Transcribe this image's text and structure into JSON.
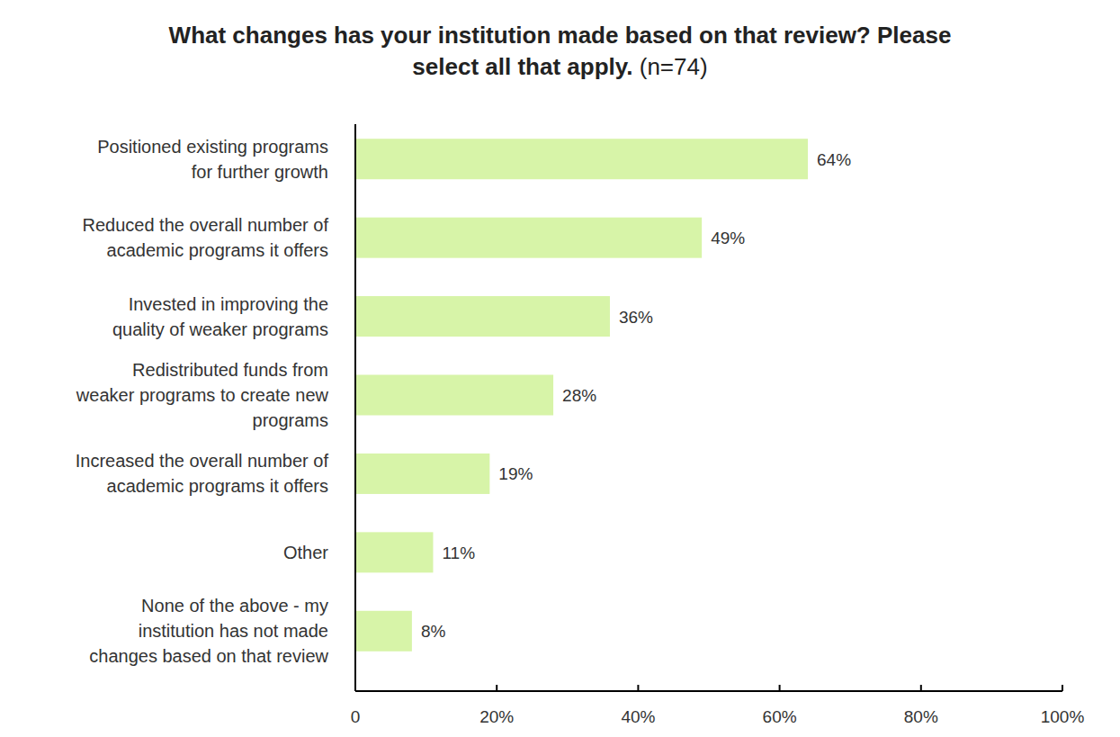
{
  "chart_data": {
    "type": "bar",
    "orientation": "horizontal",
    "title": "What changes has your institution made based on that review? Please select all that apply.",
    "subtitle": "(n=74)",
    "categories": [
      "Positioned existing programs\nfor further growth",
      "Reduced the overall number of\nacademic programs it offers",
      "Invested in improving the\nquality of weaker programs",
      "Redistributed funds from\nweaker programs to create new\nprograms",
      "Increased the overall number of\nacademic programs it offers",
      "Other",
      "None of the above - my\ninstitution has not made\nchanges based on that review"
    ],
    "values": [
      64,
      49,
      36,
      28,
      19,
      11,
      8
    ],
    "value_labels": [
      "64%",
      "49%",
      "36%",
      "28%",
      "19%",
      "11%",
      "8%"
    ],
    "color": "#d7f4a8",
    "xlim": [
      0,
      100
    ],
    "xticks": [
      0,
      {
        "value": 20,
        "label": "20%"
      },
      {
        "value": 40,
        "label": "40%"
      },
      {
        "value": 60,
        "label": "60%"
      },
      {
        "value": 80,
        "label": "80%"
      },
      {
        "value": 100,
        "label": "100%"
      }
    ],
    "grid": false,
    "data_labels": true
  }
}
